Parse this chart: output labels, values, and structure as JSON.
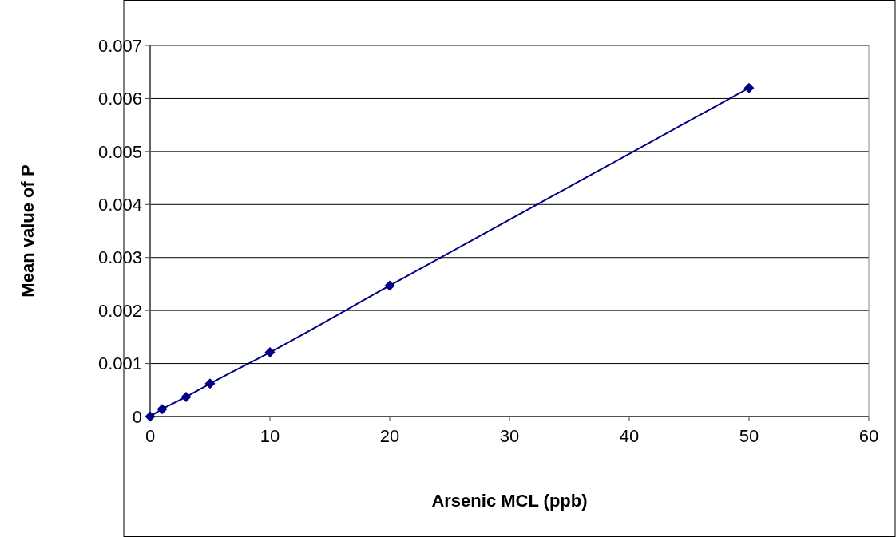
{
  "chart_data": {
    "type": "line",
    "xlabel": "Arsenic MCL (ppb)",
    "ylabel": "Mean value of P",
    "x": [
      0,
      1,
      3,
      5,
      10,
      20,
      50
    ],
    "series": [
      {
        "color": "#000080",
        "values": [
          0,
          0.00014,
          0.00037,
          0.00062,
          0.00121,
          0.00247,
          0.0062
        ]
      }
    ],
    "xlim": [
      0,
      60
    ],
    "xticks": [
      0,
      10,
      20,
      30,
      40,
      50,
      60
    ],
    "ylim": [
      0,
      0.007
    ],
    "yticks": [
      0,
      0.001,
      0.002,
      0.003,
      0.004,
      0.005,
      0.006,
      0.007
    ],
    "grid": "y",
    "marker": "diamond",
    "line_style": "solid"
  }
}
